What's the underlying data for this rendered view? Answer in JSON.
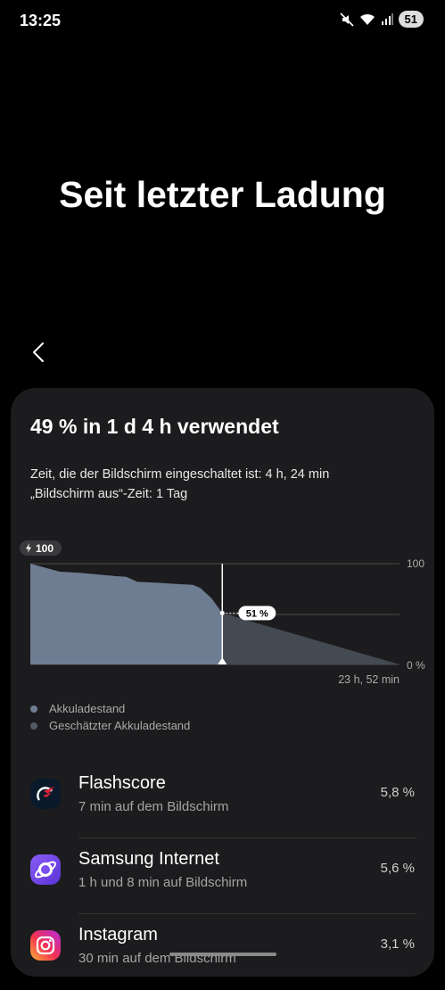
{
  "status_bar": {
    "time": "13:25",
    "battery": "51"
  },
  "title": "Seit letzter Ladung",
  "summary": "49 % in 1 d 4 h verwendet",
  "screen_on": "Zeit, die der Bildschirm eingeschaltet ist: 4 h, 24 min",
  "screen_off": "„Bildschirm aus“-Zeit: 1 Tag",
  "chart_data": {
    "type": "area",
    "start_badge": "100",
    "current_label": "51 %",
    "y_ticks": [
      "100",
      "0 %"
    ],
    "x_end_label": "23 h, 52 min",
    "ylim": [
      0,
      100
    ],
    "series": [
      {
        "name": "Akkuladestand",
        "x": [
          0,
          0.03,
          0.08,
          0.13,
          0.22,
          0.26,
          0.29,
          0.35,
          0.39,
          0.44,
          0.46,
          0.49,
          0.52
        ],
        "values": [
          100,
          97,
          92,
          91,
          88,
          87,
          82,
          81,
          80,
          79,
          76,
          66,
          51
        ]
      },
      {
        "name": "Geschätzter Akkuladestand",
        "x": [
          0.52,
          1.0
        ],
        "values": [
          51,
          0
        ]
      }
    ],
    "colors": {
      "actual": "#6f7d92",
      "estimated": "#444a52"
    }
  },
  "legend": [
    {
      "label": "Akkuladestand",
      "color": "#6f7d92"
    },
    {
      "label": "Geschätzter Akkuladestand",
      "color": "#555b63"
    }
  ],
  "apps": [
    {
      "name": "Flashscore",
      "sub": "7 min auf dem Bildschirm",
      "pct": "5,8 %",
      "icon": "flashscore-icon"
    },
    {
      "name": "Samsung Internet",
      "sub": "1 h und 8 min auf Bildschirm",
      "pct": "5,6 %",
      "icon": "samsung-internet-icon"
    },
    {
      "name": "Instagram",
      "sub": "30 min auf dem Bildschirm",
      "pct": "3,1 %",
      "icon": "instagram-icon"
    }
  ]
}
